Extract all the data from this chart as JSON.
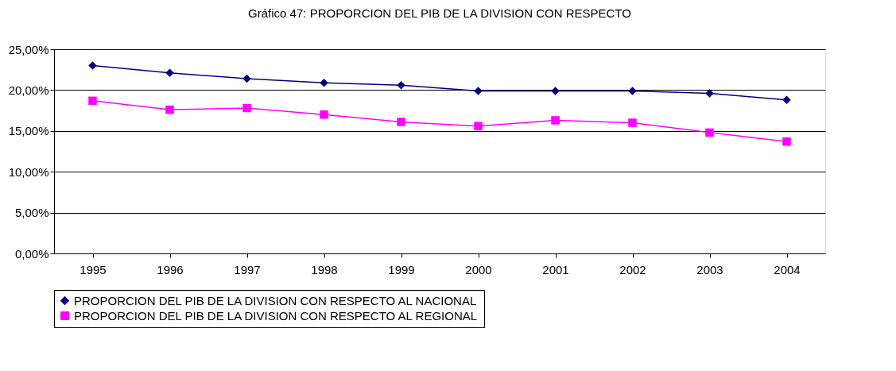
{
  "chart_data": {
    "type": "line",
    "title": "Gráfico 47: PROPORCION DEL PIB DE LA DIVISION CON RESPECTO",
    "categories": [
      "1995",
      "1996",
      "1997",
      "1998",
      "1999",
      "2000",
      "2001",
      "2002",
      "2003",
      "2004"
    ],
    "series": [
      {
        "name": "PROPORCION DEL PIB DE LA DIVISION CON RESPECTO AL NACIONAL",
        "color": "#000080",
        "marker": "diamond",
        "values": [
          23.0,
          22.1,
          21.4,
          20.9,
          20.6,
          19.9,
          19.9,
          19.9,
          19.6,
          18.8
        ]
      },
      {
        "name": "PROPORCION DEL PIB DE LA DIVISION CON RESPECTO AL REGIONAL",
        "color": "#ff00ff",
        "marker": "square",
        "values": [
          18.7,
          17.6,
          17.8,
          17.0,
          16.1,
          15.6,
          16.3,
          16.0,
          14.8,
          13.7
        ]
      }
    ],
    "ylim": [
      0,
      25
    ],
    "yticks": [
      {
        "value": 0,
        "label": "0,00%"
      },
      {
        "value": 5,
        "label": "5,00%"
      },
      {
        "value": 10,
        "label": "10,00%"
      },
      {
        "value": 15,
        "label": "15,00%"
      },
      {
        "value": 20,
        "label": "20,00%"
      },
      {
        "value": 25,
        "label": "25,00%"
      }
    ],
    "grid": "y",
    "legend": "bottom",
    "line_style": "solid"
  }
}
